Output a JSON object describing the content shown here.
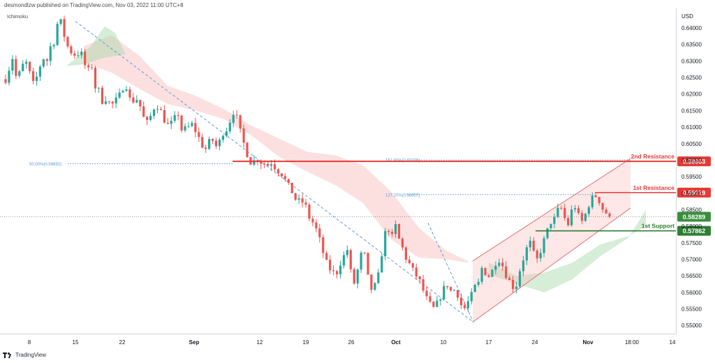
{
  "header": {
    "publisher_line": "desmondlzw published on TradingView.com, Nov 03, 2022 11:00 UTC+8",
    "indicator": "Ichimoku"
  },
  "footer": {
    "brand": "TradingView"
  },
  "chart_data": {
    "type": "candlestick",
    "currency": "USD",
    "ylim": [
      0.5475,
      0.6455
    ],
    "y_ticks": [
      0.64,
      0.635,
      0.63,
      0.625,
      0.62,
      0.615,
      0.61,
      0.605,
      0.6,
      0.595,
      0.59,
      0.585,
      0.58,
      0.575,
      0.57,
      0.565,
      0.56,
      0.555,
      0.55
    ],
    "y_tick_labels": [
      "0.64000",
      "0.63500",
      "0.63000",
      "0.62500",
      "0.62000",
      "0.61500",
      "0.61000",
      "0.60500",
      "0.60000",
      "0.59500",
      "0.59000",
      "0.58500",
      "0.58000",
      "0.57500",
      "0.57000",
      "0.56500",
      "0.56000",
      "0.55500",
      "0.55000"
    ],
    "x_ticks": [
      "8",
      "15",
      "22",
      "Sep",
      "12",
      "19",
      "26",
      "Oct",
      "10",
      "17",
      "24",
      "Nov",
      "18:00",
      "14"
    ],
    "colors": {
      "up": "#26a69a",
      "down": "#ef5350",
      "resistance": "#e53935",
      "support": "#2e7d32",
      "trend": "#5b9bd5"
    },
    "price_path": [
      [
        0.6245,
        0.628
      ],
      [
        0.6315,
        0.6235
      ],
      [
        0.6275,
        0.6295
      ],
      [
        0.6292,
        0.6225
      ],
      [
        0.624,
        0.628
      ],
      [
        0.631,
        0.63
      ],
      [
        0.6345,
        0.636
      ],
      [
        0.6425,
        0.6415
      ],
      [
        0.6355,
        0.6335
      ],
      [
        0.632,
        0.632
      ],
      [
        0.633,
        0.629
      ],
      [
        0.627,
        0.6285
      ],
      [
        0.6215,
        0.621
      ],
      [
        0.617,
        0.6195
      ],
      [
        0.616,
        0.6178
      ],
      [
        0.6185,
        0.6215
      ],
      [
        0.6235,
        0.6185
      ],
      [
        0.618,
        0.6185
      ],
      [
        0.616,
        0.612
      ],
      [
        0.611,
        0.6145
      ],
      [
        0.617,
        0.6158
      ],
      [
        0.613,
        0.6105
      ],
      [
        0.6108,
        0.6125
      ],
      [
        0.614,
        0.6088
      ],
      [
        0.6095,
        0.6102
      ],
      [
        0.611,
        0.6075
      ],
      [
        0.606,
        0.6025
      ],
      [
        0.605,
        0.6065
      ],
      [
        0.604,
        0.6055
      ],
      [
        0.6085,
        0.6095
      ],
      [
        0.6125,
        0.6155
      ],
      [
        0.6112,
        0.6065
      ],
      [
        0.6035,
        0.5995
      ],
      [
        0.5995,
        0.6005
      ],
      [
        0.5995,
        0.599
      ],
      [
        0.5985,
        0.5995
      ],
      [
        0.5975,
        0.5965
      ],
      [
        0.5955,
        0.5925
      ],
      [
        0.5915,
        0.5885
      ],
      [
        0.5875,
        0.5875
      ],
      [
        0.586,
        0.5825
      ],
      [
        0.581,
        0.5785
      ],
      [
        0.5748,
        0.5705
      ],
      [
        0.5675,
        0.5665
      ],
      [
        0.565,
        0.5685
      ],
      [
        0.5705,
        0.5735
      ],
      [
        0.5662,
        0.5625
      ],
      [
        0.5675,
        0.5725
      ],
      [
        0.5705,
        0.5605
      ],
      [
        0.5615,
        0.5625
      ],
      [
        0.5695,
        0.5775
      ],
      [
        0.5795,
        0.5765
      ],
      [
        0.5802,
        0.5755
      ],
      [
        0.5728,
        0.5695
      ],
      [
        0.568,
        0.5655
      ],
      [
        0.5645,
        0.5615
      ],
      [
        0.5585,
        0.5565
      ],
      [
        0.555,
        0.5565
      ],
      [
        0.559,
        0.5615
      ],
      [
        0.5625,
        0.5595
      ],
      [
        0.5615,
        0.5575
      ],
      [
        0.5545,
        0.5565
      ],
      [
        0.5585,
        0.5615
      ],
      [
        0.5625,
        0.5675
      ],
      [
        0.5658,
        0.5648
      ],
      [
        0.5672,
        0.5702
      ],
      [
        0.5698,
        0.5662
      ],
      [
        0.5642,
        0.5618
      ],
      [
        0.5615,
        0.5665
      ],
      [
        0.5702,
        0.5735
      ],
      [
        0.5752,
        0.5705
      ],
      [
        0.5695,
        0.5748
      ],
      [
        0.5765,
        0.5815
      ],
      [
        0.5812,
        0.5845
      ],
      [
        0.5858,
        0.5825
      ],
      [
        0.5805,
        0.5852
      ],
      [
        0.5862,
        0.5818
      ],
      [
        0.5812,
        0.5855
      ],
      [
        0.5878,
        0.5895
      ],
      [
        0.5885,
        0.5855
      ],
      [
        0.5842,
        0.5829
      ]
    ],
    "levels": [
      {
        "name": "2nd Resistance",
        "value": 0.59963,
        "value_label": "0.59963"
      },
      {
        "name": "1st Resistance",
        "value": 0.59019,
        "value_label": "0.59019"
      },
      {
        "name": "Last Price",
        "value": 0.58289,
        "value_label": "0.58289"
      },
      {
        "name": "1st Support",
        "value": 0.57862,
        "value_label": "0.57862"
      }
    ],
    "fibonacci": [
      {
        "label": "50.00%(0.59892)",
        "value": 0.59892
      },
      {
        "label": "161.80%(0.60006)",
        "value": 0.60006
      },
      {
        "label": "127.20%(0.58957)",
        "value": 0.58957
      }
    ]
  }
}
